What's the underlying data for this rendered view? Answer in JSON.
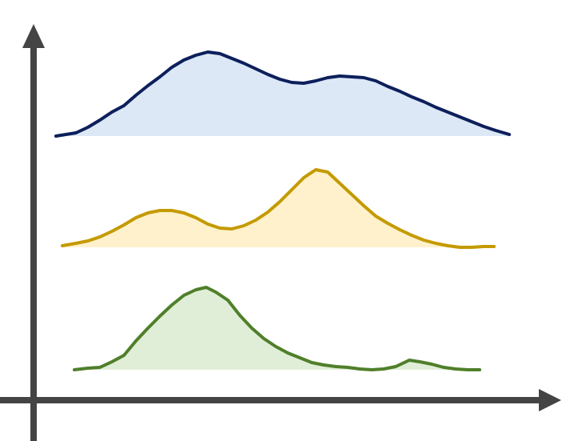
{
  "chart_data": {
    "type": "area",
    "title": "",
    "xlabel": "",
    "ylabel": "",
    "grid": false,
    "legend": "none",
    "axes": {
      "color": "#444444",
      "x_arrow": true,
      "y_arrow": true,
      "ticks": false,
      "tick_labels": false
    },
    "series": [
      {
        "id": "top",
        "line_color": "#0d1f5c",
        "fill_color": "#dce8f6",
        "points": [
          [
            70,
            170
          ],
          [
            95,
            166
          ],
          [
            110,
            159
          ],
          [
            125,
            150
          ],
          [
            140,
            140
          ],
          [
            155,
            132
          ],
          [
            170,
            119
          ],
          [
            185,
            107
          ],
          [
            200,
            96
          ],
          [
            215,
            84
          ],
          [
            230,
            75
          ],
          [
            245,
            69
          ],
          [
            260,
            65
          ],
          [
            275,
            67
          ],
          [
            290,
            73
          ],
          [
            305,
            79
          ],
          [
            320,
            86
          ],
          [
            335,
            93
          ],
          [
            350,
            99
          ],
          [
            365,
            103
          ],
          [
            380,
            104
          ],
          [
            395,
            101
          ],
          [
            410,
            97
          ],
          [
            425,
            95
          ],
          [
            440,
            96
          ],
          [
            455,
            97
          ],
          [
            470,
            101
          ],
          [
            485,
            108
          ],
          [
            500,
            114
          ],
          [
            515,
            121
          ],
          [
            530,
            127
          ],
          [
            545,
            134
          ],
          [
            560,
            140
          ],
          [
            575,
            146
          ],
          [
            590,
            152
          ],
          [
            605,
            158
          ],
          [
            620,
            163
          ],
          [
            637,
            168
          ]
        ]
      },
      {
        "id": "middle",
        "line_color": "#c49a00",
        "fill_color": "#fff1cc",
        "points": [
          [
            78,
            307
          ],
          [
            95,
            304
          ],
          [
            110,
            301
          ],
          [
            125,
            296
          ],
          [
            140,
            289
          ],
          [
            155,
            281
          ],
          [
            170,
            272
          ],
          [
            185,
            266
          ],
          [
            200,
            263
          ],
          [
            215,
            263
          ],
          [
            230,
            266
          ],
          [
            245,
            272
          ],
          [
            260,
            280
          ],
          [
            275,
            285
          ],
          [
            290,
            286
          ],
          [
            305,
            282
          ],
          [
            320,
            275
          ],
          [
            335,
            265
          ],
          [
            350,
            252
          ],
          [
            365,
            237
          ],
          [
            380,
            222
          ],
          [
            395,
            212
          ],
          [
            410,
            215
          ],
          [
            425,
            229
          ],
          [
            440,
            243
          ],
          [
            455,
            257
          ],
          [
            470,
            270
          ],
          [
            485,
            279
          ],
          [
            500,
            287
          ],
          [
            515,
            294
          ],
          [
            530,
            300
          ],
          [
            545,
            304
          ],
          [
            560,
            307
          ],
          [
            575,
            309
          ],
          [
            590,
            309
          ],
          [
            605,
            308
          ],
          [
            618,
            308
          ]
        ]
      },
      {
        "id": "bottom",
        "line_color": "#4f7f2a",
        "fill_color": "#e0eed7",
        "points": [
          [
            93,
            462
          ],
          [
            110,
            460
          ],
          [
            125,
            459
          ],
          [
            140,
            452
          ],
          [
            155,
            444
          ],
          [
            170,
            426
          ],
          [
            185,
            410
          ],
          [
            200,
            395
          ],
          [
            215,
            381
          ],
          [
            230,
            369
          ],
          [
            245,
            362
          ],
          [
            258,
            359
          ],
          [
            270,
            365
          ],
          [
            285,
            375
          ],
          [
            300,
            394
          ],
          [
            315,
            410
          ],
          [
            330,
            423
          ],
          [
            345,
            433
          ],
          [
            360,
            441
          ],
          [
            375,
            447
          ],
          [
            390,
            453
          ],
          [
            405,
            456
          ],
          [
            420,
            458
          ],
          [
            435,
            459
          ],
          [
            450,
            461
          ],
          [
            465,
            462
          ],
          [
            480,
            461
          ],
          [
            495,
            458
          ],
          [
            512,
            450
          ],
          [
            525,
            452
          ],
          [
            540,
            455
          ],
          [
            555,
            459
          ],
          [
            570,
            461
          ],
          [
            585,
            462
          ],
          [
            600,
            462
          ]
        ]
      }
    ]
  }
}
